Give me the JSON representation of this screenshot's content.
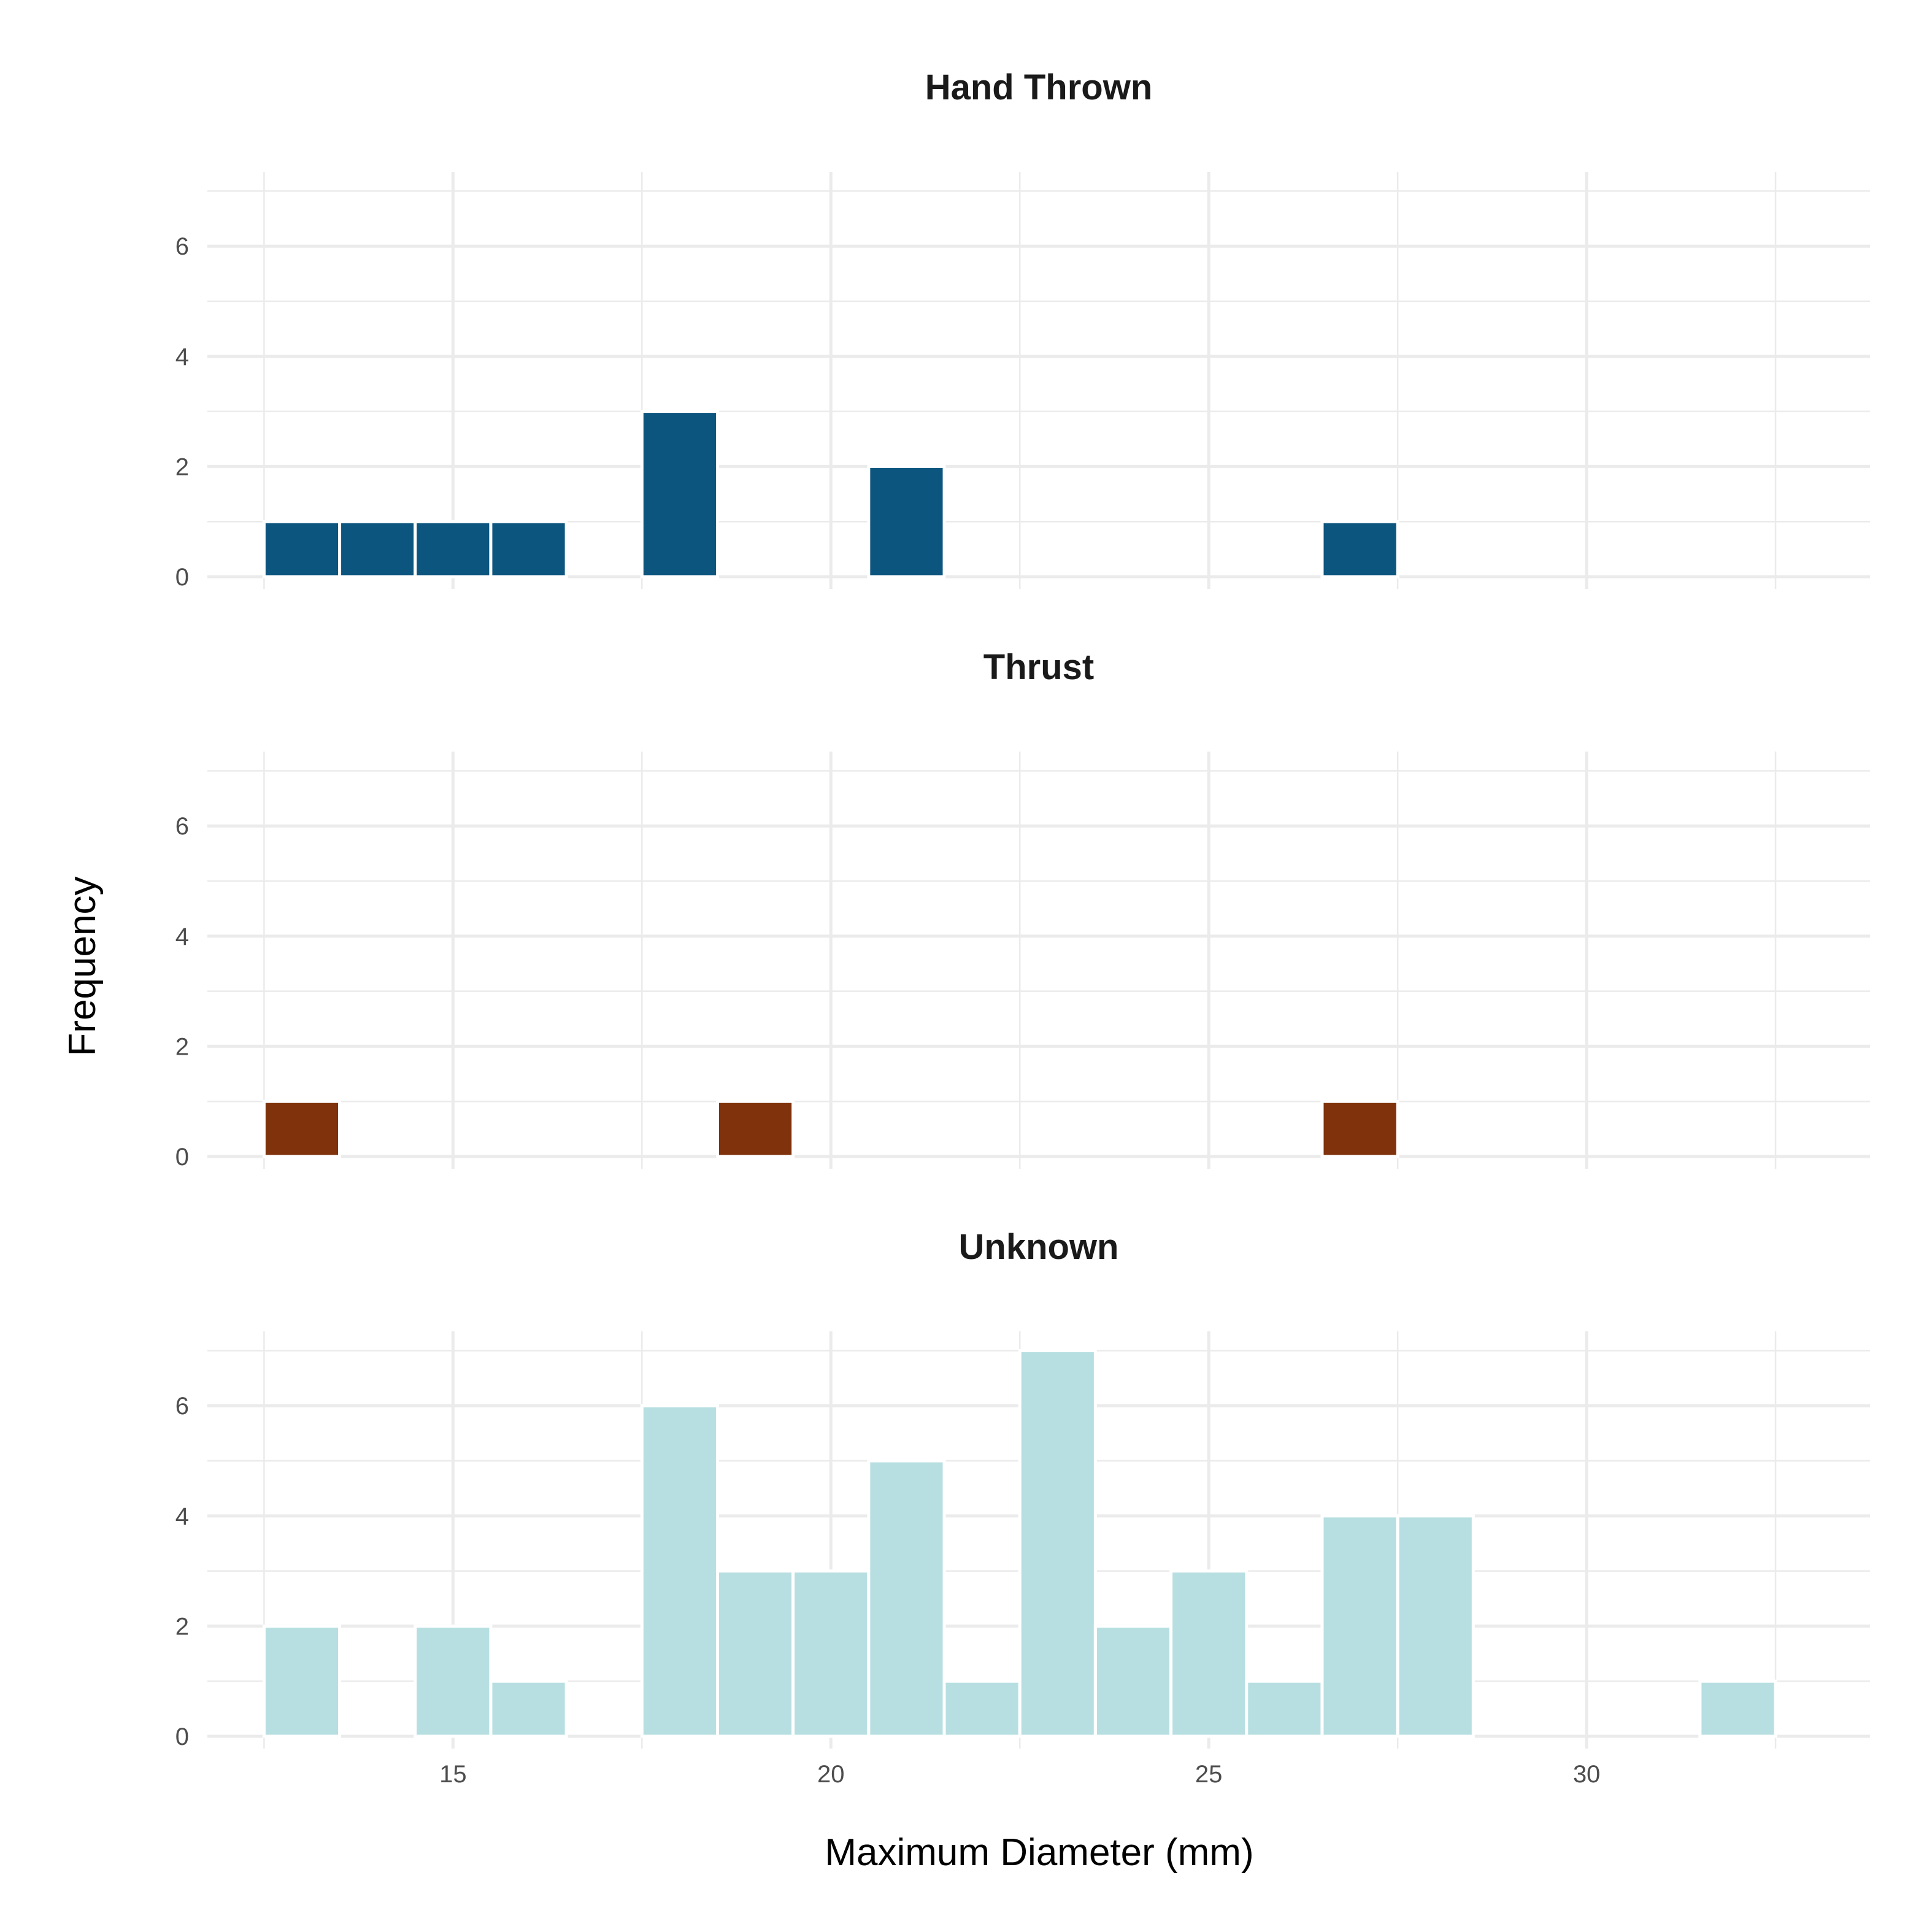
{
  "chart_data": {
    "type": "bar",
    "subtype": "histogram-faceted",
    "xlabel": "Maximum Diameter (mm)",
    "ylabel": "Frequency",
    "xlim": [
      11.75,
      33.75
    ],
    "ylim": [
      0,
      7.35
    ],
    "x_ticks": [
      15,
      20,
      25,
      30
    ],
    "y_ticks": [
      0,
      2,
      4,
      6
    ],
    "bin_width": 1,
    "grid": true,
    "legend": "none",
    "facets": [
      {
        "title": "Hand Thrown",
        "color": "#0b557f",
        "bins": [
          {
            "x": 13,
            "count": 1
          },
          {
            "x": 14,
            "count": 1
          },
          {
            "x": 15,
            "count": 1
          },
          {
            "x": 16,
            "count": 1
          },
          {
            "x": 18,
            "count": 3
          },
          {
            "x": 21,
            "count": 2
          },
          {
            "x": 27,
            "count": 1
          }
        ]
      },
      {
        "title": "Thrust",
        "color": "#7f320b",
        "bins": [
          {
            "x": 13,
            "count": 1
          },
          {
            "x": 19,
            "count": 1
          },
          {
            "x": 27,
            "count": 1
          }
        ]
      },
      {
        "title": "Unknown",
        "color": "#b7dfe1",
        "bins": [
          {
            "x": 13,
            "count": 2
          },
          {
            "x": 15,
            "count": 2
          },
          {
            "x": 16,
            "count": 1
          },
          {
            "x": 18,
            "count": 6
          },
          {
            "x": 19,
            "count": 3
          },
          {
            "x": 20,
            "count": 3
          },
          {
            "x": 21,
            "count": 5
          },
          {
            "x": 22,
            "count": 1
          },
          {
            "x": 23,
            "count": 7
          },
          {
            "x": 24,
            "count": 2
          },
          {
            "x": 25,
            "count": 3
          },
          {
            "x": 26,
            "count": 1
          },
          {
            "x": 27,
            "count": 4
          },
          {
            "x": 28,
            "count": 4
          },
          {
            "x": 32,
            "count": 1
          }
        ]
      }
    ]
  }
}
